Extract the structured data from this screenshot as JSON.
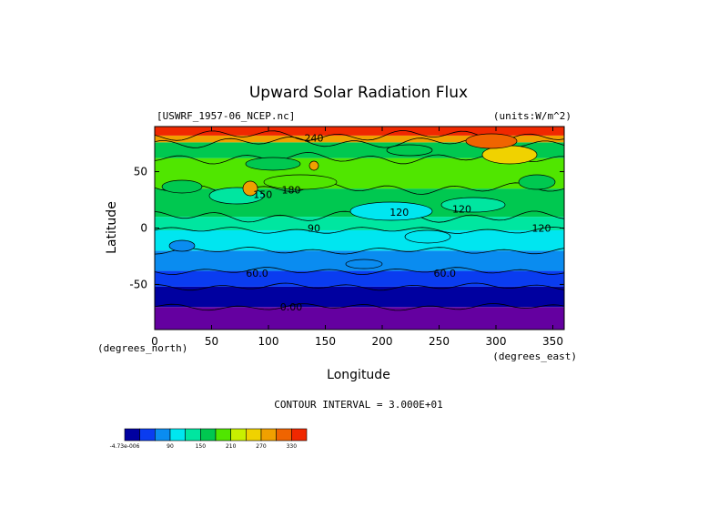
{
  "chart_data": {
    "type": "heatmap",
    "title": "Upward Solar Radiation Flux",
    "dataset_label": "[USWRF_1957-06_NCEP.nc]",
    "units_label": "(units:W/m^2)",
    "xlabel": "Longitude",
    "ylabel": "Latitude",
    "x_unit_label": "(degrees_east)",
    "y_unit_label": "(degrees_north)",
    "xlim": [
      0,
      360
    ],
    "ylim": [
      -90,
      90
    ],
    "x_ticks": [
      0,
      50,
      100,
      150,
      200,
      250,
      300,
      350
    ],
    "y_ticks": [
      -50,
      0,
      50
    ],
    "contour_interval_label": "CONTOUR INTERVAL = 3.000E+01",
    "contour_labels": [
      "240",
      "180",
      "150",
      "120",
      "120",
      "120",
      "90",
      "60.0",
      "60.0",
      "0.00"
    ],
    "colorbar": {
      "colors": [
        "#0000a0",
        "#0a3cf0",
        "#0a8cf0",
        "#00e6f0",
        "#00e6a0",
        "#00c850",
        "#50e600",
        "#c8f000",
        "#f0d200",
        "#f0a000",
        "#f06400",
        "#f02800"
      ],
      "tick_labels": [
        "-4.73e-006",
        "90",
        "150",
        "210",
        "270",
        "330"
      ]
    },
    "lat_bands": [
      {
        "lat": [
          -90,
          -70
        ],
        "color": "#6400a0"
      },
      {
        "lat": [
          -70,
          -52
        ],
        "color": "#0000a0"
      },
      {
        "lat": [
          -52,
          -38
        ],
        "color": "#0a3cf0"
      },
      {
        "lat": [
          -38,
          -20
        ],
        "color": "#0a8cf0"
      },
      {
        "lat": [
          -20,
          -2
        ],
        "color": "#00e6f0"
      },
      {
        "lat": [
          -2,
          10
        ],
        "color": "#00e6a0"
      },
      {
        "lat": [
          10,
          35
        ],
        "color": "#00c850"
      },
      {
        "lat": [
          35,
          62
        ],
        "color": "#50e600"
      },
      {
        "lat": [
          62,
          76
        ],
        "color": "#00c850"
      },
      {
        "lat": [
          76,
          82
        ],
        "color": "#f0a000"
      },
      {
        "lat": [
          82,
          90
        ],
        "color": "#f02800"
      }
    ]
  }
}
